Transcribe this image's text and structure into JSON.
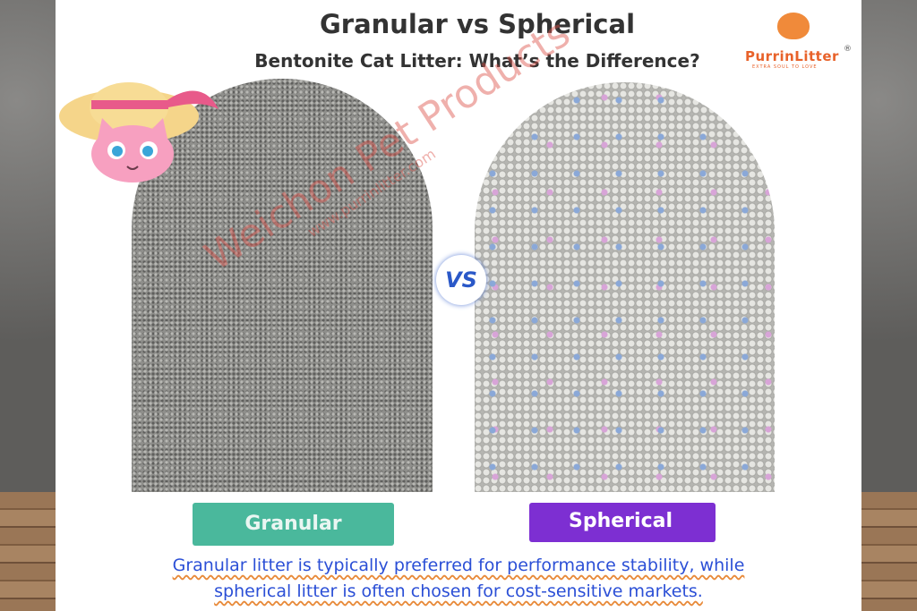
{
  "header": {
    "title": "Granular vs Spherical",
    "subtitle": "Bentonite Cat Litter: What’s the Difference?"
  },
  "logo": {
    "name": "PurrinLitter",
    "mark": "®",
    "tagline": "EXTRA SOUL TO LOVE"
  },
  "badge": "VS",
  "labels": {
    "left": "Granular",
    "right": "Spherical"
  },
  "watermark": {
    "name": "Weichon Pet Products",
    "url": "www.purrinlitter.com"
  },
  "caption": {
    "lines": [
      "Granular litter is typically preferred for performance stability, while",
      "spherical litter is often chosen for cost-sensitive markets."
    ]
  }
}
